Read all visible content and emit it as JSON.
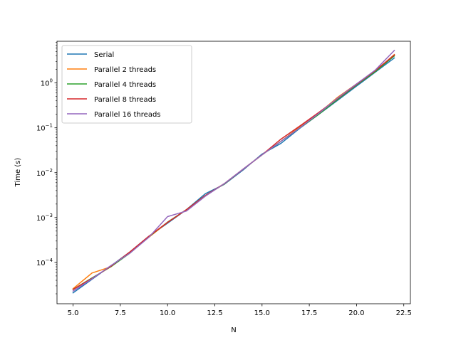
{
  "chart_data": {
    "type": "line",
    "title": "",
    "xlabel": "N",
    "ylabel": "Time (s)",
    "xscale": "linear",
    "yscale": "log",
    "xlim": [
      4.15,
      22.85
    ],
    "ylim": [
      1.2e-05,
      8.5
    ],
    "grid": false,
    "legend_position": "top-left",
    "x_ticks": [
      5.0,
      7.5,
      10.0,
      12.5,
      15.0,
      17.5,
      20.0,
      22.5
    ],
    "x_tick_labels": [
      "5.0",
      "7.5",
      "10.0",
      "12.5",
      "15.0",
      "17.5",
      "20.0",
      "22.5"
    ],
    "y_ticks": [
      0.0001,
      0.001,
      0.01,
      0.1,
      1
    ],
    "y_tick_labels": [
      {
        "base": "10",
        "exp": "−4"
      },
      {
        "base": "10",
        "exp": "−3"
      },
      {
        "base": "10",
        "exp": "−2"
      },
      {
        "base": "10",
        "exp": "−1"
      },
      {
        "base": "10",
        "exp": "0"
      }
    ],
    "x": [
      5,
      6,
      7,
      8,
      9,
      10,
      11,
      12,
      13,
      14,
      15,
      16,
      17,
      18,
      19,
      20,
      21,
      22
    ],
    "series": [
      {
        "name": "Serial",
        "color": "#1f77b4",
        "values": [
          2.1e-05,
          4.2e-05,
          8.4e-05,
          0.00017,
          0.00038,
          0.00075,
          0.0015,
          0.0034,
          0.0055,
          0.0115,
          0.026,
          0.045,
          0.098,
          0.2,
          0.41,
          0.85,
          1.75,
          3.6
        ]
      },
      {
        "name": "Parallel 2 threads",
        "color": "#ff7f0e",
        "values": [
          2.6e-05,
          5.8e-05,
          8e-05,
          0.00017,
          0.00036,
          0.00078,
          0.0015,
          0.0031,
          0.0056,
          0.012,
          0.025,
          0.05,
          0.105,
          0.21,
          0.48,
          0.95,
          1.85,
          4.3
        ]
      },
      {
        "name": "Parallel 4 threads",
        "color": "#2ca02c",
        "values": [
          2.5e-05,
          4.5e-05,
          8e-05,
          0.00016,
          0.00037,
          0.00079,
          0.0015,
          0.0031,
          0.0056,
          0.012,
          0.025,
          0.05,
          0.1,
          0.2,
          0.43,
          0.9,
          1.8,
          4.0
        ]
      },
      {
        "name": "Parallel 8 threads",
        "color": "#d62728",
        "values": [
          2.5e-05,
          4.4e-05,
          8.2e-05,
          0.00017,
          0.00038,
          0.00078,
          0.0015,
          0.0031,
          0.0057,
          0.012,
          0.025,
          0.056,
          0.11,
          0.22,
          0.45,
          0.93,
          1.9,
          4.2
        ]
      },
      {
        "name": "Parallel 16 threads",
        "color": "#9467bd",
        "values": [
          2.3e-05,
          4.3e-05,
          8.5e-05,
          0.00016,
          0.00036,
          0.00105,
          0.0014,
          0.003,
          0.0057,
          0.012,
          0.025,
          0.05,
          0.1,
          0.21,
          0.46,
          0.95,
          1.95,
          5.3
        ]
      }
    ]
  }
}
